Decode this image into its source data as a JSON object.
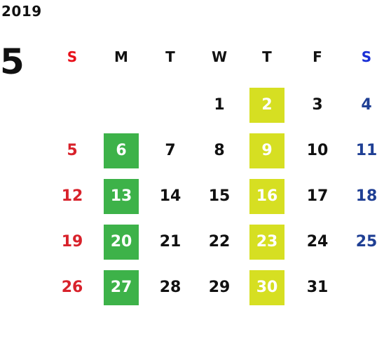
{
  "calendar": {
    "year": "2019",
    "month": "5",
    "weekdays": [
      {
        "label": "S",
        "color": "#e8101a"
      },
      {
        "label": "M",
        "color": "#111111"
      },
      {
        "label": "T",
        "color": "#111111"
      },
      {
        "label": "W",
        "color": "#111111"
      },
      {
        "label": "T",
        "color": "#111111"
      },
      {
        "label": "F",
        "color": "#111111"
      },
      {
        "label": "S",
        "color": "#1a2fd6"
      }
    ],
    "weeks": [
      [
        null,
        null,
        null,
        {
          "day": "1"
        },
        {
          "day": "2",
          "highlight": "yellow"
        },
        {
          "day": "3"
        },
        {
          "day": "4"
        }
      ],
      [
        {
          "day": "5"
        },
        {
          "day": "6",
          "highlight": "green"
        },
        {
          "day": "7"
        },
        {
          "day": "8"
        },
        {
          "day": "9",
          "highlight": "yellow"
        },
        {
          "day": "10"
        },
        {
          "day": "11"
        }
      ],
      [
        {
          "day": "12"
        },
        {
          "day": "13",
          "highlight": "green"
        },
        {
          "day": "14"
        },
        {
          "day": "15"
        },
        {
          "day": "16",
          "highlight": "yellow"
        },
        {
          "day": "17"
        },
        {
          "day": "18"
        }
      ],
      [
        {
          "day": "19"
        },
        {
          "day": "20",
          "highlight": "green"
        },
        {
          "day": "21"
        },
        {
          "day": "22"
        },
        {
          "day": "23",
          "highlight": "yellow"
        },
        {
          "day": "24"
        },
        {
          "day": "25"
        }
      ],
      [
        {
          "day": "26"
        },
        {
          "day": "27",
          "highlight": "green"
        },
        {
          "day": "28"
        },
        {
          "day": "29"
        },
        {
          "day": "30",
          "highlight": "yellow"
        },
        {
          "day": "31"
        },
        null
      ]
    ],
    "colors": {
      "sunday_dates": "#d8222b",
      "saturday_dates": "#1f3f94",
      "green_highlight": "#3db249",
      "yellow_highlight": "#d6df22"
    }
  }
}
